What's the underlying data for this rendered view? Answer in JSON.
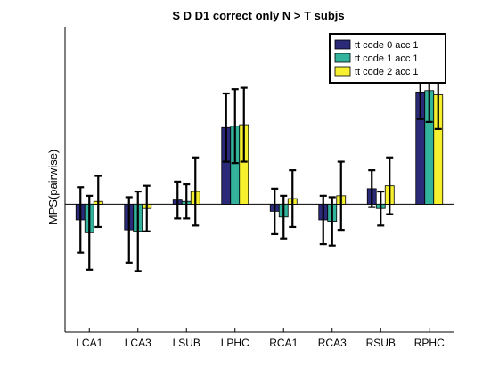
{
  "chart_data": {
    "type": "bar",
    "title": "S D D1 correct only N > T subjs",
    "xlabel": "",
    "ylabel": "MPS(pairwise)",
    "categories": [
      "LCA1",
      "LCA3",
      "LSUB",
      "LPHC",
      "RCA1",
      "RCA3",
      "RSUB",
      "RPHC"
    ],
    "ylim": [
      -0.09,
      0.125
    ],
    "yticks": [],
    "grid": false,
    "zero_line": true,
    "legend_position": "top-right",
    "series": [
      {
        "name": "tt code 0 acc 1",
        "color": "#2a2a78",
        "values": [
          -0.011,
          -0.018,
          0.003,
          0.054,
          -0.005,
          -0.011,
          0.011,
          0.079
        ],
        "errors": [
          0.023,
          0.023,
          0.013,
          0.024,
          0.016,
          0.017,
          0.013,
          0.019
        ]
      },
      {
        "name": "tt code 1 acc 1",
        "color": "#33b39b",
        "values": [
          -0.02,
          -0.019,
          0.002,
          0.055,
          -0.009,
          -0.012,
          -0.003,
          0.08
        ],
        "errors": [
          0.026,
          0.028,
          0.012,
          0.026,
          0.015,
          0.017,
          0.012,
          0.022
        ]
      },
      {
        "name": "tt code 2 acc 1",
        "color": "#f7f02e",
        "values": [
          0.002,
          -0.003,
          0.009,
          0.056,
          0.004,
          0.006,
          0.013,
          0.077
        ],
        "errors": [
          0.018,
          0.016,
          0.024,
          0.026,
          0.02,
          0.024,
          0.02,
          0.024
        ]
      }
    ]
  }
}
